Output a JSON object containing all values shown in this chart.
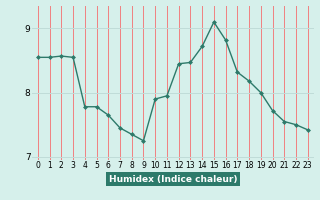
{
  "x": [
    0,
    1,
    2,
    3,
    4,
    5,
    6,
    7,
    8,
    9,
    10,
    11,
    12,
    13,
    14,
    15,
    16,
    17,
    18,
    19,
    20,
    21,
    22,
    23
  ],
  "y": [
    8.55,
    8.55,
    8.57,
    8.55,
    7.78,
    7.78,
    7.65,
    7.45,
    7.35,
    7.25,
    7.9,
    7.95,
    8.45,
    8.47,
    8.72,
    9.1,
    8.82,
    8.32,
    8.18,
    8.0,
    7.72,
    7.55,
    7.5,
    7.42
  ],
  "title": "",
  "xlabel": "Humidex (Indice chaleur)",
  "ylabel": "",
  "xlim": [
    -0.5,
    23.5
  ],
  "ylim": [
    6.95,
    9.35
  ],
  "yticks": [
    7,
    8,
    9
  ],
  "xticks": [
    0,
    1,
    2,
    3,
    4,
    5,
    6,
    7,
    8,
    9,
    10,
    11,
    12,
    13,
    14,
    15,
    16,
    17,
    18,
    19,
    20,
    21,
    22,
    23
  ],
  "bg_color": "#d6f0eb",
  "line_color": "#2d7a6a",
  "marker_color": "#2d7a6a",
  "grid_color_v": "#f08080",
  "grid_color_h": "#c8e8e3",
  "label_bg": "#2d7a6a",
  "label_text": "#ffffff"
}
